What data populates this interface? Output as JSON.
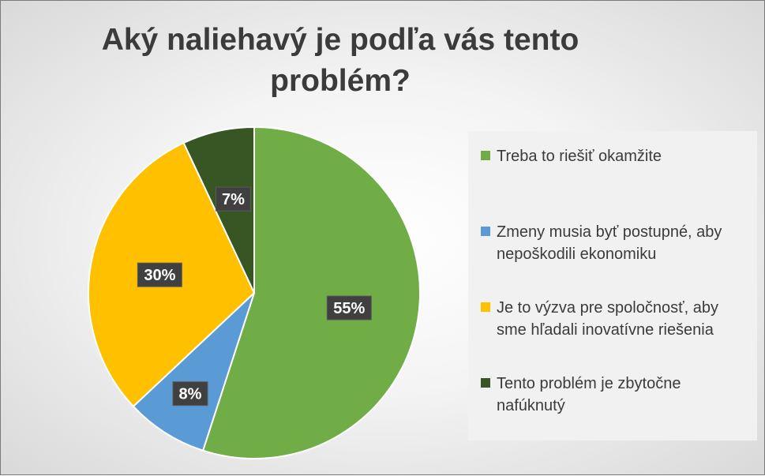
{
  "title": "Aký naliehavý je podľa vás tento problém?",
  "chart_data": {
    "type": "pie",
    "title": "Aký naliehavý je podľa vás tento problém?",
    "slices": [
      {
        "label": "Treba to riešiť okamžite",
        "value": 55,
        "display": "55%",
        "color": "#70ad47"
      },
      {
        "label": "Zmeny musia byť postupné, aby nepoškodili ekonomiku",
        "value": 8,
        "display": "8%",
        "color": "#5b9bd5"
      },
      {
        "label": "Je to výzva pre spoločnosť, aby sme hľadali inovatívne riešenia",
        "value": 30,
        "display": "30%",
        "color": "#ffc000"
      },
      {
        "label": "Tento problém je zbytočne nafúknutý",
        "value": 7,
        "display": "7%",
        "color": "#375623"
      }
    ],
    "legend_position": "right",
    "data_label_style": "dark-box"
  }
}
